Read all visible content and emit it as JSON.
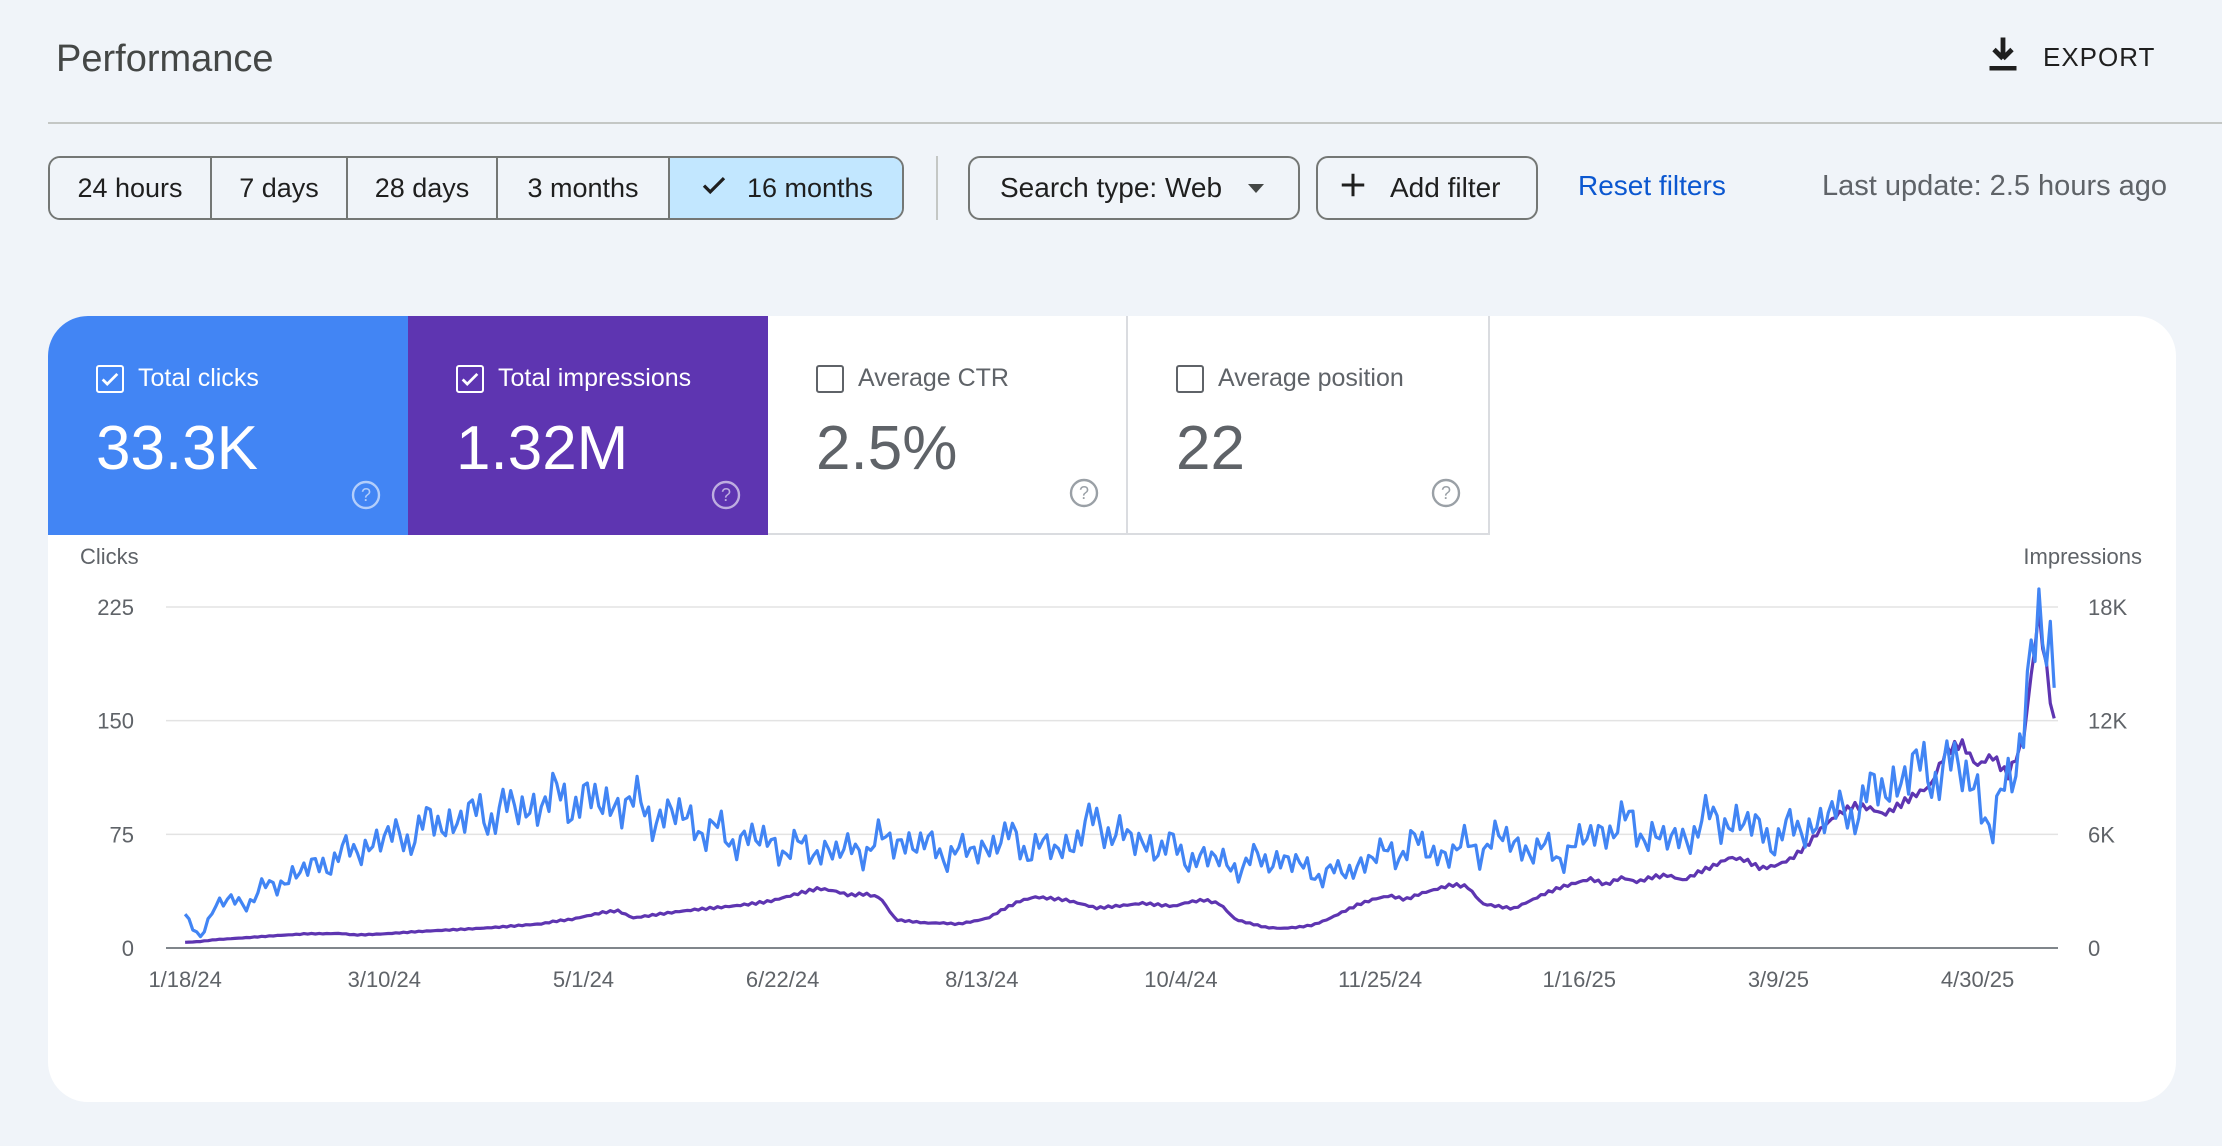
{
  "header": {
    "title": "Performance",
    "export_label": "EXPORT",
    "export_icon": "download-icon"
  },
  "date_range": {
    "options": [
      {
        "label": "24 hours",
        "selected": false
      },
      {
        "label": "7 days",
        "selected": false
      },
      {
        "label": "28 days",
        "selected": false
      },
      {
        "label": "3 months",
        "selected": false
      },
      {
        "label": "16 months",
        "selected": true
      }
    ]
  },
  "filters": {
    "search_type_label": "Search type: Web",
    "add_filter_label": "Add filter",
    "reset_label": "Reset filters",
    "last_update": "Last update: 2.5 hours ago"
  },
  "metrics": [
    {
      "label": "Total clicks",
      "value": "33.3K",
      "checked": true,
      "color": "#4285f4"
    },
    {
      "label": "Total impressions",
      "value": "1.32M",
      "checked": true,
      "color": "#5e35b1"
    },
    {
      "label": "Average CTR",
      "value": "2.5%",
      "checked": false
    },
    {
      "label": "Average position",
      "value": "22",
      "checked": false
    }
  ],
  "chart_data": {
    "type": "line",
    "left_axis": {
      "label": "Clicks",
      "ticks": [
        "0",
        "75",
        "150",
        "225"
      ],
      "range": [
        0,
        225
      ]
    },
    "right_axis": {
      "label": "Impressions",
      "ticks": [
        "0",
        "6K",
        "12K",
        "18K"
      ],
      "range": [
        0,
        18000
      ]
    },
    "x_tick_labels": [
      "1/18/24",
      "3/10/24",
      "5/1/24",
      "6/22/24",
      "8/13/24",
      "10/4/24",
      "11/25/24",
      "1/16/25",
      "3/9/25",
      "4/30/25"
    ],
    "x_range": [
      "1/13/24",
      "5/21/25"
    ],
    "grid": true,
    "series": [
      {
        "name": "Clicks",
        "axis": "left",
        "color": "#4285f4",
        "sample_every_days": 4,
        "values": [
          20,
          8,
          28,
          32,
          30,
          38,
          44,
          48,
          52,
          58,
          60,
          65,
          70,
          72,
          74,
          78,
          82,
          84,
          86,
          88,
          92,
          90,
          94,
          96,
          98,
          100,
          96,
          95,
          98,
          92,
          90,
          86,
          88,
          80,
          76,
          72,
          74,
          70,
          68,
          66,
          64,
          66,
          62,
          66,
          68,
          70,
          72,
          68,
          66,
          64,
          62,
          66,
          70,
          72,
          68,
          66,
          64,
          72,
          80,
          82,
          76,
          68,
          70,
          66,
          62,
          60,
          58,
          56,
          54,
          58,
          60,
          56,
          52,
          50,
          48,
          54,
          58,
          62,
          66,
          68,
          64,
          62,
          66,
          68,
          70,
          72,
          66,
          64,
          62,
          66,
          72,
          78,
          82,
          80,
          76,
          70,
          72,
          80,
          84,
          86,
          82,
          78,
          74,
          76,
          80,
          84,
          88,
          92,
          98,
          106,
          112,
          116,
          118,
          120,
          116,
          110,
          72,
          112,
          150,
          210,
          188
        ]
      },
      {
        "name": "Impressions",
        "axis": "right",
        "color": "#5e35b1",
        "sample_every_days": 4,
        "values": [
          300,
          350,
          450,
          500,
          550,
          600,
          650,
          700,
          750,
          760,
          780,
          700,
          720,
          750,
          800,
          850,
          900,
          950,
          1000,
          1050,
          1100,
          1150,
          1200,
          1250,
          1400,
          1500,
          1700,
          1900,
          2000,
          1600,
          1700,
          1800,
          1900,
          2000,
          2100,
          2200,
          2300,
          2400,
          2500,
          2700,
          2900,
          3100,
          3000,
          2800,
          2900,
          2700,
          1500,
          1400,
          1300,
          1300,
          1250,
          1400,
          1600,
          2100,
          2500,
          2700,
          2600,
          2500,
          2300,
          2100,
          2200,
          2300,
          2400,
          2300,
          2200,
          2400,
          2500,
          2300,
          1500,
          1300,
          1100,
          1050,
          1100,
          1200,
          1500,
          1900,
          2300,
          2600,
          2800,
          2600,
          2900,
          3100,
          3300,
          3200,
          2300,
          2200,
          2100,
          2500,
          2900,
          3200,
          3400,
          3600,
          3300,
          3700,
          3500,
          3800,
          3900,
          3600,
          4000,
          4300,
          4700,
          4600,
          4200,
          4400,
          4800,
          5500,
          6400,
          7000,
          7400,
          7300,
          7000,
          7600,
          8200,
          8700,
          10500,
          10800,
          9500,
          10000,
          9000,
          10900,
          17800,
          12000
        ]
      }
    ]
  }
}
